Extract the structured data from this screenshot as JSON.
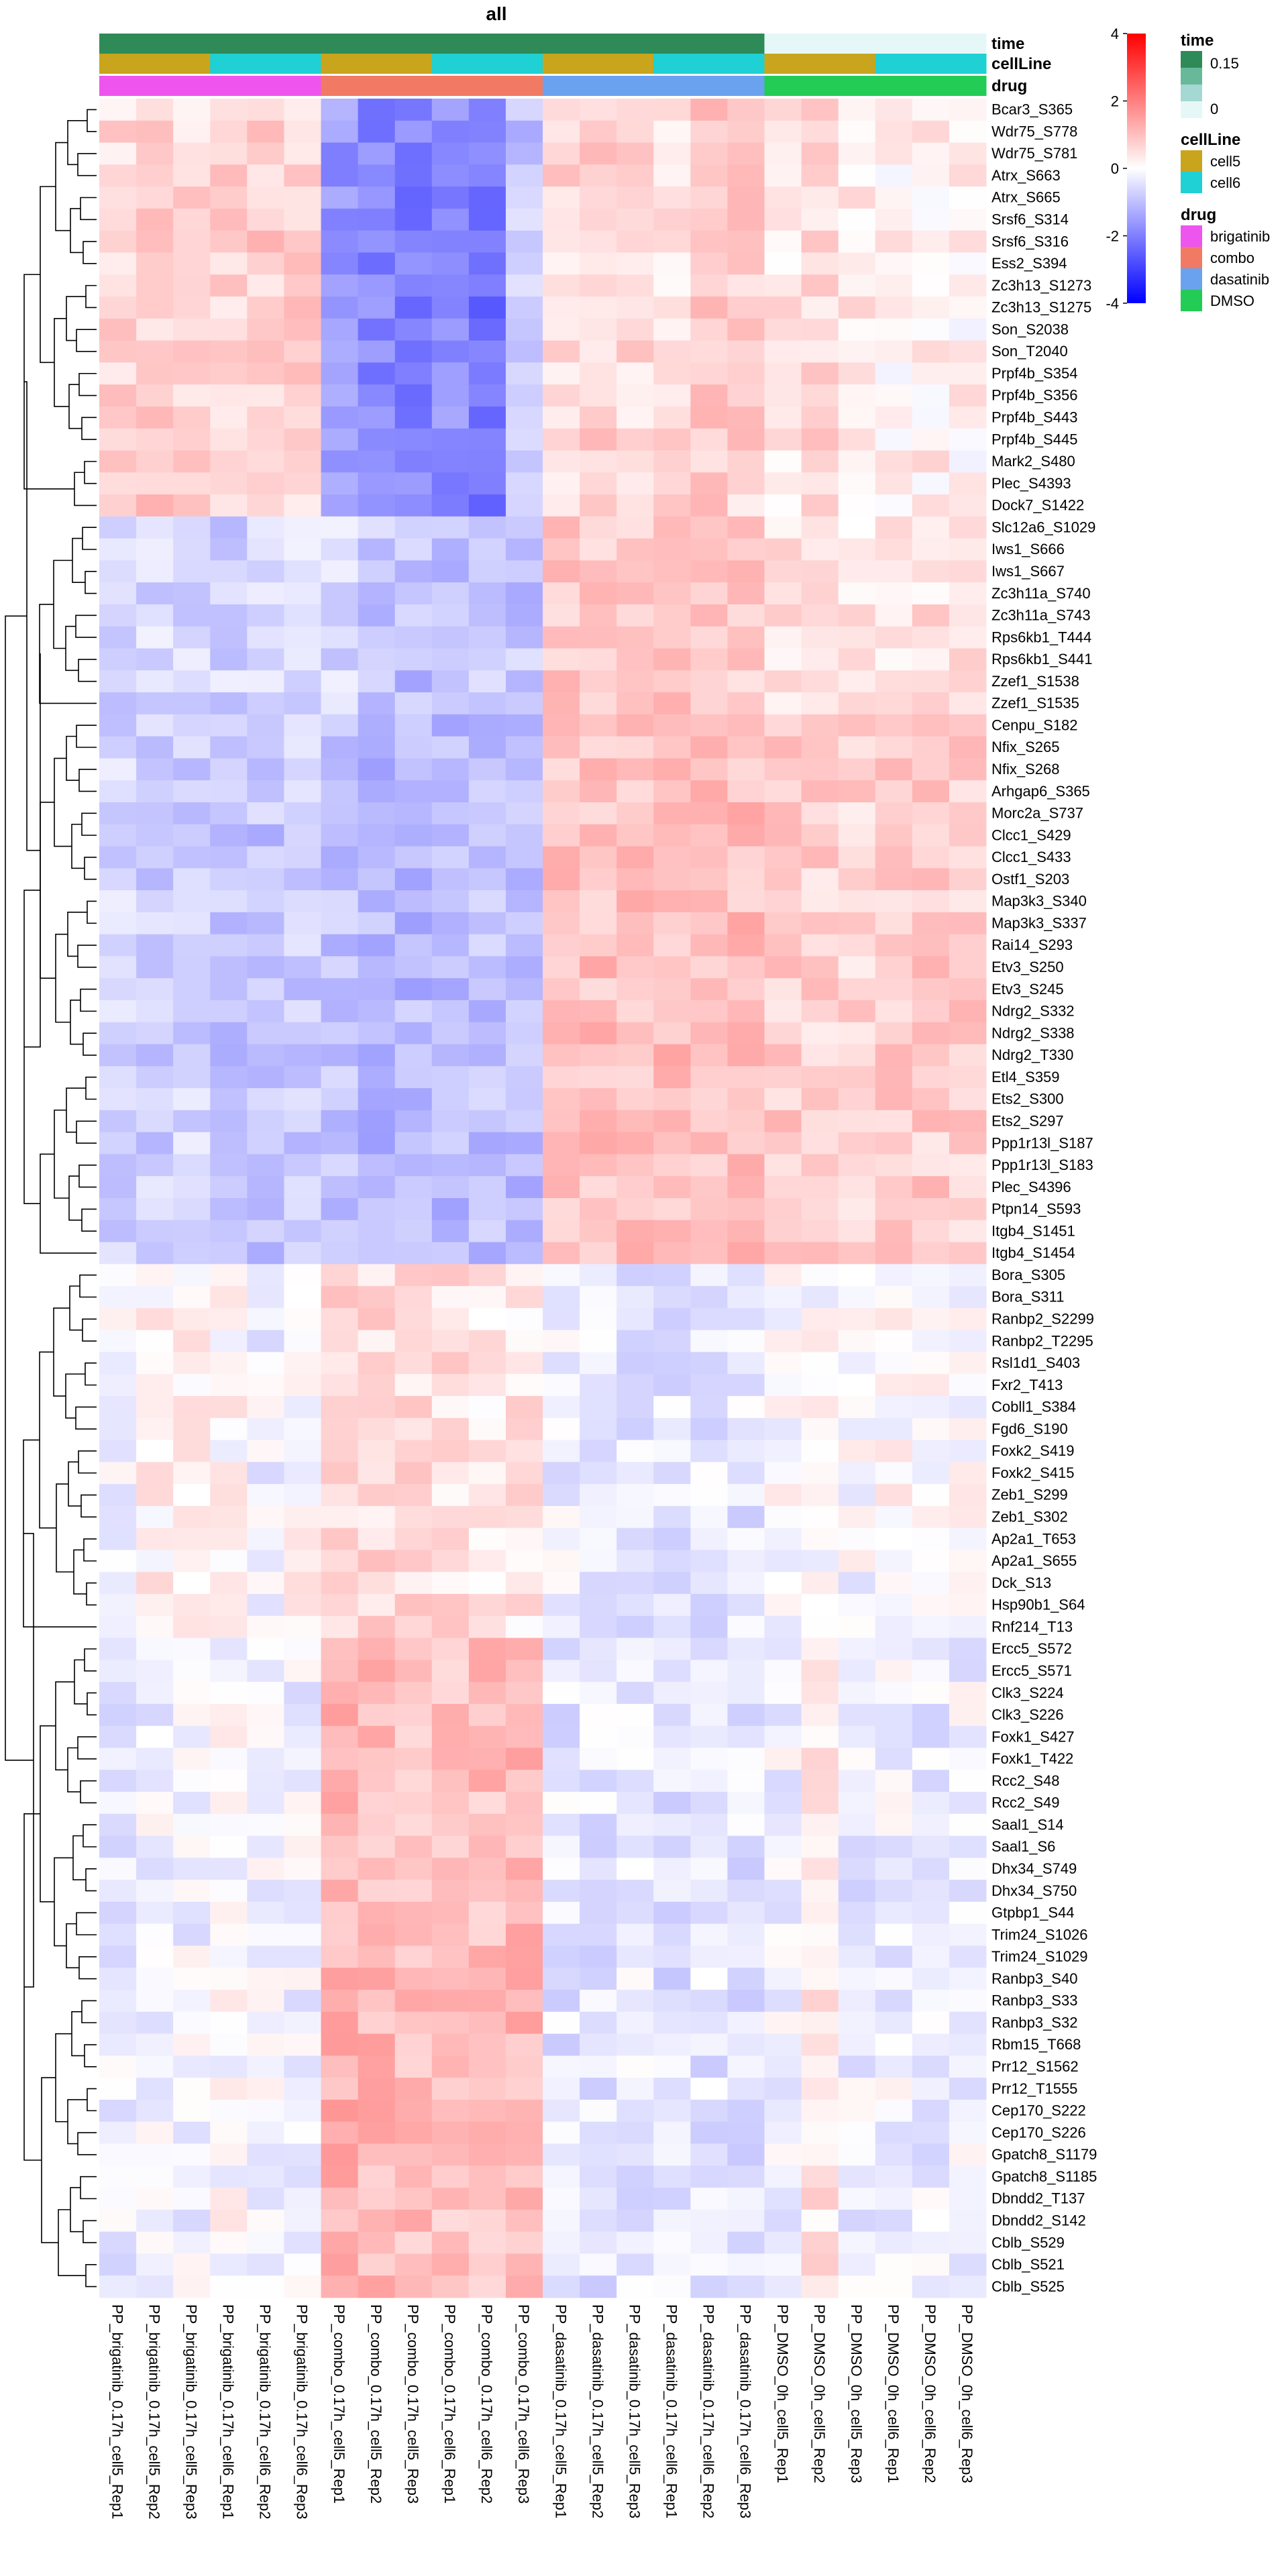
{
  "chart_data": {
    "type": "heatmap",
    "title": "all",
    "columns": [
      "PP_brigatinib_0.17h_cell5_Rep1",
      "PP_brigatinib_0.17h_cell5_Rep2",
      "PP_brigatinib_0.17h_cell5_Rep3",
      "PP_brigatinib_0.17h_cell6_Rep1",
      "PP_brigatinib_0.17h_cell6_Rep2",
      "PP_brigatinib_0.17h_cell6_Rep3",
      "PP_combo_0.17h_cell5_Rep1",
      "PP_combo_0.17h_cell5_Rep2",
      "PP_combo_0.17h_cell5_Rep3",
      "PP_combo_0.17h_cell6_Rep1",
      "PP_combo_0.17h_cell6_Rep2",
      "PP_combo_0.17h_cell6_Rep3",
      "PP_dasatinib_0.17h_cell5_Rep1",
      "PP_dasatinib_0.17h_cell5_Rep2",
      "PP_dasatinib_0.17h_cell5_Rep3",
      "PP_dasatinib_0.17h_cell6_Rep1",
      "PP_dasatinib_0.17h_cell6_Rep2",
      "PP_dasatinib_0.17h_cell6_Rep3",
      "PP_DMSO_0h_cell5_Rep1",
      "PP_DMSO_0h_cell5_Rep2",
      "PP_DMSO_0h_cell5_Rep3",
      "PP_DMSO_0h_cell6_Rep1",
      "PP_DMSO_0h_cell6_Rep2",
      "PP_DMSO_0h_cell6_Rep3"
    ],
    "rows": [
      "Bcar3_S365",
      "Wdr75_S778",
      "Wdr75_S781",
      "Atrx_S663",
      "Atrx_S665",
      "Srsf6_S314",
      "Srsf6_S316",
      "Ess2_S394",
      "Zc3h13_S1273",
      "Zc3h13_S1275",
      "Son_S2038",
      "Son_T2040",
      "Prpf4b_S354",
      "Prpf4b_S356",
      "Prpf4b_S443",
      "Prpf4b_S445",
      "Mark2_S480",
      "Plec_S4393",
      "Dock7_S1422",
      "Slc12a6_S1029",
      "Iws1_S666",
      "Iws1_S667",
      "Zc3h11a_S740",
      "Zc3h11a_S743",
      "Rps6kb1_T444",
      "Rps6kb1_S441",
      "Zzef1_S1538",
      "Zzef1_S1535",
      "Cenpu_S182",
      "Nfix_S265",
      "Nfix_S268",
      "Arhgap6_S365",
      "Morc2a_S737",
      "Clcc1_S429",
      "Clcc1_S433",
      "Ostf1_S203",
      "Map3k3_S340",
      "Map3k3_S337",
      "Rai14_S293",
      "Etv3_S250",
      "Etv3_S245",
      "Ndrg2_S332",
      "Ndrg2_S338",
      "Ndrg2_T330",
      "Etl4_S359",
      "Ets2_S300",
      "Ets2_S297",
      "Ppp1r13l_S187",
      "Ppp1r13l_S183",
      "Plec_S4396",
      "Ptpn14_S593",
      "Itgb4_S1451",
      "Itgb4_S1454",
      "Bora_S305",
      "Bora_S311",
      "Ranbp2_S2299",
      "Ranbp2_T2295",
      "Rsl1d1_S403",
      "Fxr2_T413",
      "Cobll1_S384",
      "Fgd6_S190",
      "Foxk2_S419",
      "Foxk2_S415",
      "Zeb1_S299",
      "Zeb1_S302",
      "Ap2a1_T653",
      "Ap2a1_S655",
      "Dck_S13",
      "Hsp90b1_S64",
      "Rnf214_T13",
      "Ercc5_S572",
      "Ercc5_S571",
      "Clk3_S224",
      "Clk3_S226",
      "Foxk1_S427",
      "Foxk1_T422",
      "Rcc2_S48",
      "Rcc2_S49",
      "Saal1_S14",
      "Saal1_S6",
      "Dhx34_S749",
      "Dhx34_S750",
      "Gtpbp1_S44",
      "Trim24_S1026",
      "Trim24_S1029",
      "Ranbp3_S40",
      "Ranbp3_S33",
      "Ranbp3_S32",
      "Rbm15_T668",
      "Prr12_S1562",
      "Prr12_T1555",
      "Cep170_S222",
      "Cep170_S226",
      "Gpatch8_S1179",
      "Gpatch8_S1185",
      "Dbndd2_T137",
      "Dbndd2_S142",
      "Cblb_S529",
      "Cblb_S521",
      "Cblb_S525"
    ],
    "column_annotations": {
      "time": [
        0.17,
        0.17,
        0.17,
        0.17,
        0.17,
        0.17,
        0.17,
        0.17,
        0.17,
        0.17,
        0.17,
        0.17,
        0.17,
        0.17,
        0.17,
        0.17,
        0.17,
        0.17,
        0,
        0,
        0,
        0,
        0,
        0
      ],
      "cellLine": [
        "cell5",
        "cell5",
        "cell5",
        "cell6",
        "cell6",
        "cell6",
        "cell5",
        "cell5",
        "cell5",
        "cell6",
        "cell6",
        "cell6",
        "cell5",
        "cell5",
        "cell5",
        "cell6",
        "cell6",
        "cell6",
        "cell5",
        "cell5",
        "cell5",
        "cell6",
        "cell6",
        "cell6"
      ],
      "drug": [
        "brigatinib",
        "brigatinib",
        "brigatinib",
        "brigatinib",
        "brigatinib",
        "brigatinib",
        "combo",
        "combo",
        "combo",
        "combo",
        "combo",
        "combo",
        "dasatinib",
        "dasatinib",
        "dasatinib",
        "dasatinib",
        "dasatinib",
        "dasatinib",
        "DMSO",
        "DMSO",
        "DMSO",
        "DMSO",
        "DMSO",
        "DMSO"
      ]
    },
    "annotation_labels": [
      "time",
      "cellLine",
      "drug"
    ],
    "annotation_colors": {
      "time_high": "#2e8b57",
      "time_low": "#e6f7f8",
      "cellLine": {
        "cell5": "#c9a41d",
        "cell6": "#1fd0d4"
      },
      "drug": {
        "brigatinib": "#ee55ee",
        "combo": "#f07a64",
        "dasatinib": "#6aa2f0",
        "DMSO": "#22cc55"
      }
    },
    "color_scale": {
      "min": -4,
      "max": 4,
      "low": "#0000ff",
      "mid": "#ffffff",
      "high": "#ff0000",
      "ticks": [
        "4",
        "2",
        "0",
        "-2",
        "-4"
      ]
    },
    "legends": [
      {
        "title": "time",
        "items": [
          "0.15",
          "0"
        ]
      },
      {
        "title": "cellLine",
        "items": [
          "cell5",
          "cell6"
        ]
      },
      {
        "title": "drug",
        "items": [
          "brigatinib",
          "combo",
          "dasatinib",
          "DMSO"
        ]
      }
    ],
    "row_blocks": [
      {
        "from": 0,
        "to": 18,
        "values": [
          0.6,
          0.8,
          0.6,
          0.7,
          0.8,
          0.7,
          -1.6,
          -1.9,
          -2.0,
          -1.8,
          -2.2,
          -0.9,
          0.6,
          0.7,
          0.6,
          0.5,
          0.8,
          0.7,
          0.4,
          0.6,
          0.4,
          0.2,
          0.3,
          0.2
        ]
      },
      {
        "from": 19,
        "to": 27,
        "values": [
          -0.6,
          -0.6,
          -0.6,
          -0.7,
          -0.7,
          -0.6,
          -0.6,
          -0.9,
          -1.0,
          -0.9,
          -0.9,
          -0.9,
          0.9,
          0.9,
          0.9,
          0.9,
          0.9,
          0.9,
          0.4,
          0.3,
          0.3,
          0.4,
          0.5,
          0.5
        ]
      },
      {
        "from": 28,
        "to": 52,
        "values": [
          -0.7,
          -0.8,
          -0.7,
          -0.9,
          -0.9,
          -0.8,
          -1.0,
          -1.1,
          -1.1,
          -1.1,
          -1.0,
          -1.1,
          0.9,
          1.0,
          1.0,
          1.0,
          1.0,
          1.0,
          0.8,
          0.7,
          0.7,
          0.8,
          0.8,
          0.8
        ]
      },
      {
        "from": 53,
        "to": 69,
        "values": [
          -0.1,
          0.2,
          0.2,
          0.1,
          -0.2,
          0.1,
          0.6,
          0.6,
          0.6,
          0.5,
          0.3,
          0.4,
          -0.3,
          -0.4,
          -0.4,
          -0.4,
          -0.4,
          -0.4,
          0.0,
          0.0,
          -0.1,
          0.1,
          0.0,
          0.0
        ]
      },
      {
        "from": 70,
        "to": 99,
        "values": [
          -0.3,
          -0.2,
          -0.2,
          0.0,
          -0.1,
          -0.2,
          1.2,
          1.1,
          1.0,
          1.0,
          1.0,
          1.1,
          -0.4,
          -0.4,
          -0.3,
          -0.5,
          -0.4,
          -0.4,
          -0.2,
          0.4,
          -0.3,
          -0.2,
          -0.3,
          -0.2
        ]
      }
    ]
  }
}
